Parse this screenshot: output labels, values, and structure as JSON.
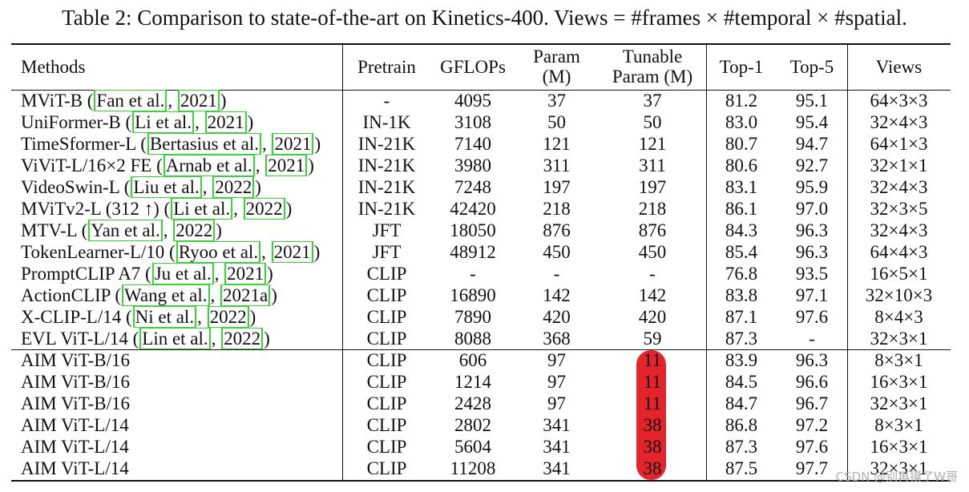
{
  "caption": "Table 2: Comparison to state-of-the-art on Kinetics-400. Views = #frames × #temporal × #spatial.",
  "headers": {
    "methods": "Methods",
    "pretrain": "Pretrain",
    "gflops": "GFLOPs",
    "param_1": "Param",
    "param_2": "(M)",
    "tunable_1": "Tunable",
    "tunable_2": "Param (M)",
    "top1": "Top-1",
    "top5": "Top-5",
    "views": "Views"
  },
  "rows": [
    {
      "method": "MViT-B (",
      "cite1": "Fan et al.",
      "sep": ", ",
      "cite2": "2021",
      "tail": ")",
      "pretrain": "-",
      "gflops": "4095",
      "param": "37",
      "tunable": "37",
      "top1": "81.2",
      "top5": "95.1",
      "views": "64×3×3"
    },
    {
      "method": "UniFormer-B (",
      "cite1": "Li et al.",
      "sep": ", ",
      "cite2": "2021",
      "tail": ")",
      "pretrain": "IN-1K",
      "gflops": "3108",
      "param": "50",
      "tunable": "50",
      "top1": "83.0",
      "top5": "95.4",
      "views": "32×4×3"
    },
    {
      "method": "TimeSformer-L (",
      "cite1": "Bertasius et al.",
      "sep": ", ",
      "cite2": "2021",
      "tail": ")",
      "pretrain": "IN-21K",
      "gflops": "7140",
      "param": "121",
      "tunable": "121",
      "top1": "80.7",
      "top5": "94.7",
      "views": "64×1×3"
    },
    {
      "method": "ViViT-L/16×2 FE (",
      "cite1": "Arnab et al.",
      "sep": ", ",
      "cite2": "2021",
      "tail": ")",
      "pretrain": "IN-21K",
      "gflops": "3980",
      "param": "311",
      "tunable": "311",
      "top1": "80.6",
      "top5": "92.7",
      "views": "32×1×1"
    },
    {
      "method": "VideoSwin-L (",
      "cite1": "Liu et al.",
      "sep": ", ",
      "cite2": "2022",
      "tail": ")",
      "pretrain": "IN-21K",
      "gflops": "7248",
      "param": "197",
      "tunable": "197",
      "top1": "83.1",
      "top5": "95.9",
      "views": "32×4×3"
    },
    {
      "method": "MViTv2-L (312 ↑) (",
      "cite1": "Li et al.",
      "sep": ", ",
      "cite2": "2022",
      "tail": ")",
      "pretrain": "IN-21K",
      "gflops": "42420",
      "param": "218",
      "tunable": "218",
      "top1": "86.1",
      "top5": "97.0",
      "views": "32×3×5"
    },
    {
      "method": "MTV-L (",
      "cite1": "Yan et al.",
      "sep": ", ",
      "cite2": "2022",
      "tail": ")",
      "pretrain": "JFT",
      "gflops": "18050",
      "param": "876",
      "tunable": "876",
      "top1": "84.3",
      "top5": "96.3",
      "views": "32×4×3"
    },
    {
      "method": "TokenLearner-L/10 (",
      "cite1": "Ryoo et al.",
      "sep": ", ",
      "cite2": "2021",
      "tail": ")",
      "pretrain": "JFT",
      "gflops": "48912",
      "param": "450",
      "tunable": "450",
      "top1": "85.4",
      "top5": "96.3",
      "views": "64×4×3"
    },
    {
      "method": "PromptCLIP A7 (",
      "cite1": "Ju et al.",
      "sep": ", ",
      "cite2": "2021",
      "tail": ")",
      "pretrain": "CLIP",
      "gflops": "-",
      "param": "-",
      "tunable": "-",
      "top1": "76.8",
      "top5": "93.5",
      "views": "16×5×1"
    },
    {
      "method": "ActionCLIP (",
      "cite1": "Wang et al.",
      "sep": ", ",
      "cite2": "2021a",
      "tail": ")",
      "pretrain": "CLIP",
      "gflops": "16890",
      "param": "142",
      "tunable": "142",
      "top1": "83.8",
      "top5": "97.1",
      "views": "32×10×3"
    },
    {
      "method": "X-CLIP-L/14 (",
      "cite1": "Ni et al.",
      "sep": ", ",
      "cite2": "2022",
      "tail": ")",
      "pretrain": "CLIP",
      "gflops": "7890",
      "param": "420",
      "tunable": "420",
      "top1": "87.1",
      "top5": "97.6",
      "views": "8×4×3"
    },
    {
      "method": "EVL ViT-L/14 (",
      "cite1": "Lin et al.",
      "sep": ", ",
      "cite2": "2022",
      "tail": ")",
      "pretrain": "CLIP",
      "gflops": "8088",
      "param": "368",
      "tunable": "59",
      "top1": "87.3",
      "top5": "-",
      "views": "32×3×1"
    }
  ],
  "aim_rows": [
    {
      "method": "AIM ViT-B/16",
      "pretrain": "CLIP",
      "gflops": "606",
      "param": "97",
      "tunable": "11",
      "top1": "83.9",
      "top5": "96.3",
      "views": "8×3×1"
    },
    {
      "method": "AIM ViT-B/16",
      "pretrain": "CLIP",
      "gflops": "1214",
      "param": "97",
      "tunable": "11",
      "top1": "84.5",
      "top5": "96.6",
      "views": "16×3×1"
    },
    {
      "method": "AIM ViT-B/16",
      "pretrain": "CLIP",
      "gflops": "2428",
      "param": "97",
      "tunable": "11",
      "top1": "84.7",
      "top5": "96.7",
      "views": "32×3×1"
    },
    {
      "method": "AIM ViT-L/14",
      "pretrain": "CLIP",
      "gflops": "2802",
      "param": "341",
      "tunable": "38",
      "top1": "86.8",
      "top5": "97.2",
      "views": "8×3×1"
    },
    {
      "method": "AIM ViT-L/14",
      "pretrain": "CLIP",
      "gflops": "5604",
      "param": "341",
      "tunable": "38",
      "top1": "87.3",
      "top5": "97.6",
      "views": "16×3×1"
    },
    {
      "method": "AIM ViT-L/14",
      "pretrain": "CLIP",
      "gflops": "11208",
      "param": "341",
      "tunable": "38",
      "top1": "87.5",
      "top5": "97.7",
      "views": "32×3×1",
      "top1_bold": true
    }
  ],
  "highlight_color": "#e3242b",
  "cite_box_color": "#39d339",
  "watermark": "CSDN @别再摸了W哥"
}
